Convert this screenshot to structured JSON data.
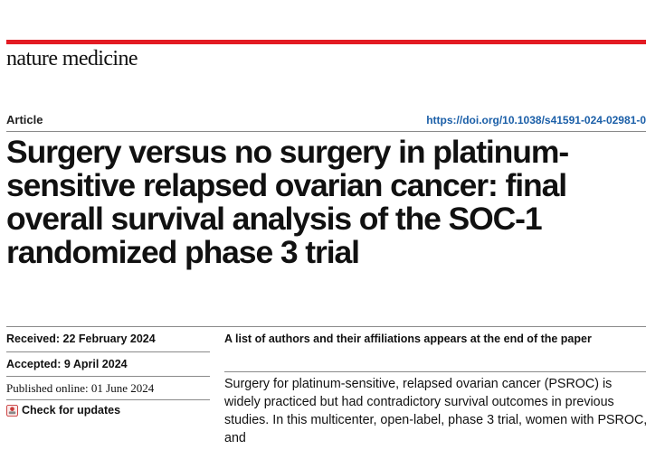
{
  "header": {
    "journal": "nature medicine",
    "brand_color": "#e31b23"
  },
  "article": {
    "type": "Article",
    "doi": "https://doi.org/10.1038/s41591-024-02981-0",
    "title": "Surgery versus no surgery in platinum-sensitive relapsed ovarian cancer: final overall survival analysis of the SOC-1 randomized phase 3 trial"
  },
  "meta": {
    "received": "Received: 22 February 2024",
    "accepted": "Accepted: 9 April 2024",
    "published": "Published online: 01 June 2024",
    "check_updates": "Check for updates"
  },
  "authors_note": "A list of authors and their affiliations appears at the end of the paper",
  "abstract": "Surgery for platinum-sensitive, relapsed ovarian cancer (PSROC) is widely practiced but had contradictory survival outcomes in previous studies. In this multicenter, open-label, phase 3 trial, women with PSROC, and",
  "icons": {
    "check_updates": "check-for-updates-icon"
  },
  "colors": {
    "doi_link": "#1b5fa8"
  }
}
